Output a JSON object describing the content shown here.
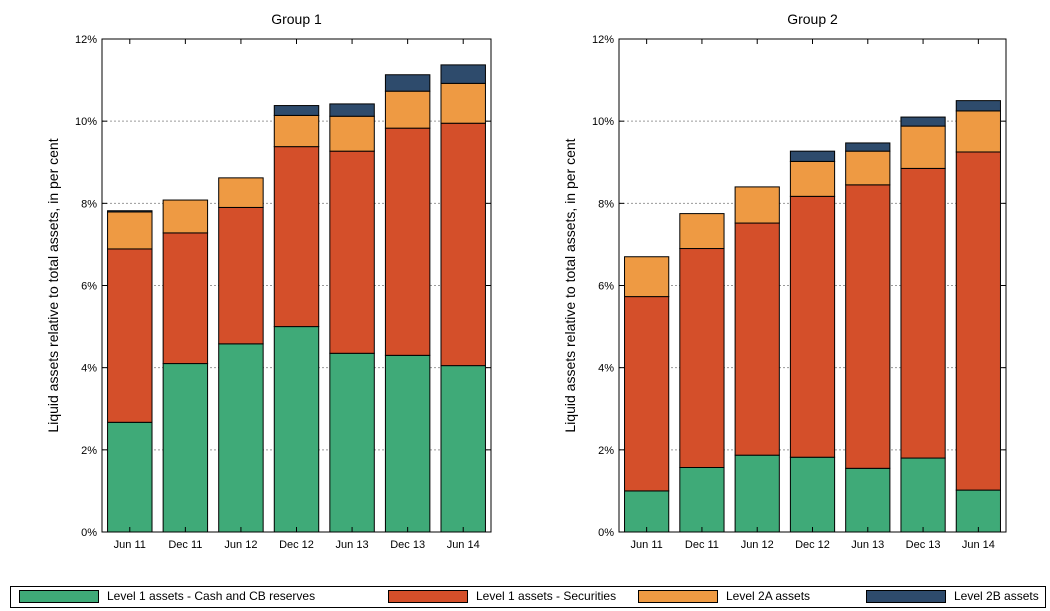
{
  "colors": {
    "cash_cb": "#3faa78",
    "securities": "#d44f2a",
    "level2a": "#ee9a43",
    "level2b": "#2e4b6c"
  },
  "legend": [
    {
      "key": "cash_cb",
      "label": "Level 1 assets - Cash and CB reserves"
    },
    {
      "key": "securities",
      "label": "Level 1 assets - Securities"
    },
    {
      "key": "level2a",
      "label": "Level 2A assets"
    },
    {
      "key": "level2b",
      "label": "Level 2B assets"
    }
  ],
  "chart_data": [
    {
      "type": "bar",
      "stacked": true,
      "title": "Group 1",
      "ylabel": "Liquid assets relative to total assets, in per cent",
      "ylim": [
        0,
        12
      ],
      "yticks": [
        "0%",
        "2%",
        "4%",
        "6%",
        "8%",
        "10%",
        "12%"
      ],
      "grid": "y-dotted",
      "categories": [
        "Jun 11",
        "Dec 11",
        "Jun 12",
        "Dec 12",
        "Jun 13",
        "Dec 13",
        "Jun 14"
      ],
      "series": [
        {
          "name": "Level 1 assets - Cash and CB reserves",
          "key": "cash_cb",
          "values": [
            2.67,
            4.1,
            4.58,
            5.0,
            4.35,
            4.3,
            4.05
          ]
        },
        {
          "name": "Level 1 assets - Securities",
          "key": "securities",
          "values": [
            4.22,
            3.18,
            3.32,
            4.38,
            4.92,
            5.53,
            5.9
          ]
        },
        {
          "name": "Level 2A assets",
          "key": "level2a",
          "values": [
            0.9,
            0.8,
            0.72,
            0.76,
            0.85,
            0.9,
            0.97
          ]
        },
        {
          "name": "Level 2B assets",
          "key": "level2b",
          "values": [
            0.03,
            0.0,
            0.0,
            0.24,
            0.3,
            0.4,
            0.45
          ]
        }
      ]
    },
    {
      "type": "bar",
      "stacked": true,
      "title": "Group 2",
      "ylabel": "Liquid assets relative to total assets, in per cent",
      "ylim": [
        0,
        12
      ],
      "yticks": [
        "0%",
        "2%",
        "4%",
        "6%",
        "8%",
        "10%",
        "12%"
      ],
      "grid": "y-dotted",
      "categories": [
        "Jun 11",
        "Dec 11",
        "Jun 12",
        "Dec 12",
        "Jun 13",
        "Dec 13",
        "Jun 14"
      ],
      "series": [
        {
          "name": "Level 1 assets - Cash and CB reserves",
          "key": "cash_cb",
          "values": [
            1.0,
            1.57,
            1.87,
            1.82,
            1.55,
            1.8,
            1.02
          ]
        },
        {
          "name": "Level 1 assets - Securities",
          "key": "securities",
          "values": [
            4.73,
            5.33,
            5.65,
            6.35,
            6.9,
            7.05,
            8.23
          ]
        },
        {
          "name": "Level 2A assets",
          "key": "level2a",
          "values": [
            0.97,
            0.85,
            0.88,
            0.85,
            0.82,
            1.03,
            1.0
          ]
        },
        {
          "name": "Level 2B assets",
          "key": "level2b",
          "values": [
            0.0,
            0.0,
            0.0,
            0.25,
            0.2,
            0.22,
            0.25
          ]
        }
      ]
    }
  ]
}
